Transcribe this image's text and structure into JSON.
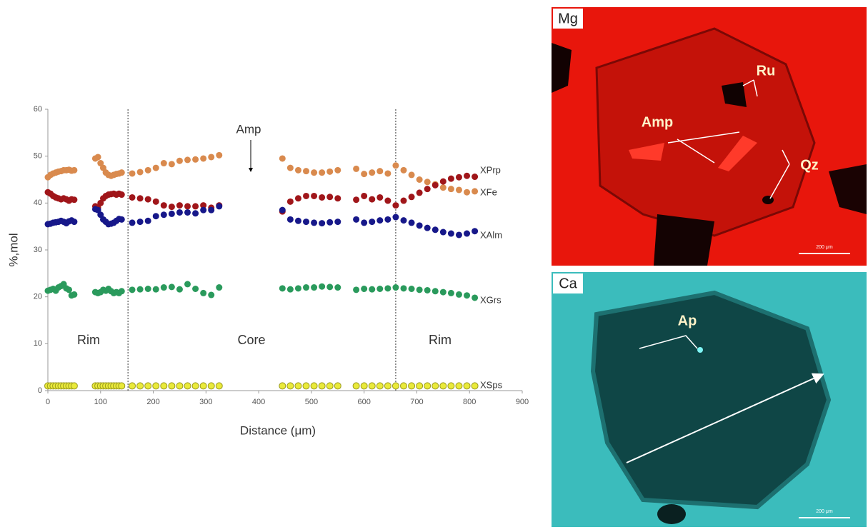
{
  "chart_data": {
    "type": "scatter",
    "x_label": "Distance (μm)",
    "y_label": "%,mol",
    "xlim": [
      0,
      900
    ],
    "xticks": [
      0,
      100,
      200,
      300,
      400,
      500,
      600,
      700,
      800,
      900
    ],
    "ylim": [
      0,
      60
    ],
    "yticks": [
      0,
      10,
      20,
      30,
      40,
      50,
      60
    ],
    "boundaries": [
      152,
      660
    ],
    "zones": [
      "Rim",
      "Core",
      "Rim"
    ],
    "annotation": "Amp",
    "x": [
      0,
      5,
      10,
      15,
      20,
      25,
      30,
      35,
      40,
      45,
      50,
      90,
      95,
      100,
      105,
      110,
      115,
      120,
      125,
      130,
      135,
      140,
      160,
      175,
      190,
      205,
      220,
      235,
      250,
      265,
      280,
      295,
      310,
      325,
      445,
      460,
      475,
      490,
      505,
      520,
      535,
      550,
      585,
      600,
      615,
      630,
      645,
      660,
      675,
      690,
      705,
      720,
      735,
      750,
      765,
      780,
      795,
      810
    ],
    "series": [
      {
        "name": "XPrp",
        "color": "#d98a4e",
        "values": [
          45.5,
          46,
          46.3,
          46.5,
          46.7,
          46.8,
          47,
          47,
          47.1,
          46.9,
          47,
          49.5,
          49.8,
          48.5,
          47.5,
          46.5,
          46,
          45.8,
          46,
          46.2,
          46.3,
          46.5,
          46.3,
          46.6,
          47,
          47.5,
          48.5,
          48.3,
          49,
          49.2,
          49.3,
          49.5,
          49.8,
          50.2,
          49.5,
          47.5,
          47,
          46.8,
          46.5,
          46.5,
          46.7,
          47,
          47.3,
          46.2,
          46.5,
          46.8,
          46.3,
          48,
          47,
          46,
          45,
          44.5,
          44,
          43.3,
          43,
          42.8,
          42.3,
          42.5
        ]
      },
      {
        "name": "XFe",
        "color": "#a0161a",
        "values": [
          42.3,
          42,
          41.5,
          41.2,
          41,
          40.8,
          41,
          40.8,
          40.5,
          40.8,
          40.7,
          39.3,
          39,
          40,
          41,
          41.5,
          41.8,
          41.9,
          42,
          41.8,
          42,
          41.8,
          41.2,
          41,
          40.8,
          40.3,
          39.5,
          39.2,
          39.5,
          39.3,
          39.3,
          39.5,
          39,
          39.5,
          38.2,
          40.3,
          41,
          41.5,
          41.5,
          41.2,
          41.3,
          41,
          40.7,
          41.5,
          40.8,
          41.2,
          40.5,
          39.5,
          40.5,
          41.3,
          42.2,
          43,
          43.8,
          44.6,
          45.2,
          45.5,
          45.8,
          45.6
        ]
      },
      {
        "name": "XAlm",
        "color": "#17188a",
        "values": [
          35.5,
          35.6,
          35.8,
          35.9,
          36,
          36.2,
          36,
          35.7,
          36.1,
          36.3,
          36,
          38.7,
          38.5,
          37.5,
          36.5,
          36,
          35.5,
          35.6,
          35.8,
          36.2,
          36.6,
          36.5,
          35.8,
          36,
          36.2,
          37.2,
          37.5,
          37.7,
          38,
          38,
          37.8,
          38.5,
          38.5,
          39.3,
          38.5,
          36.5,
          36.2,
          36,
          35.8,
          35.7,
          35.9,
          36,
          36.5,
          35.8,
          36,
          36.3,
          36.5,
          37,
          36.3,
          35.8,
          35.2,
          34.7,
          34.3,
          33.8,
          33.5,
          33.2,
          33.5,
          34
        ]
      },
      {
        "name": "XGrs",
        "color": "#2a9a5c",
        "values": [
          21.3,
          21.5,
          21.7,
          21.3,
          22,
          22.3,
          22.7,
          21.8,
          21.5,
          20.3,
          20.5,
          21,
          20.8,
          21,
          21.5,
          21.3,
          21.7,
          21.2,
          20.8,
          21,
          20.8,
          21.2,
          21.5,
          21.6,
          21.7,
          21.6,
          22,
          22.1,
          21.6,
          22.7,
          21.7,
          20.8,
          20.4,
          22,
          21.8,
          21.6,
          21.8,
          22,
          22,
          22.2,
          22.1,
          22,
          21.5,
          21.7,
          21.6,
          21.7,
          21.8,
          22,
          21.8,
          21.7,
          21.5,
          21.4,
          21.2,
          21,
          20.8,
          20.5,
          20.3,
          19.8
        ]
      },
      {
        "name": "XSps",
        "color": "#eaea3a",
        "values": [
          1,
          1,
          1,
          1,
          1,
          1,
          1,
          1,
          1,
          1,
          1,
          1,
          1,
          1,
          1,
          1,
          1,
          1,
          1,
          1,
          1,
          1,
          1,
          1,
          1,
          1,
          1,
          1,
          1,
          1,
          1,
          1,
          1,
          1,
          1,
          1,
          1,
          1,
          1,
          1,
          1,
          1,
          1,
          1,
          1,
          1,
          1,
          1,
          1,
          1,
          1,
          1,
          1,
          1,
          1,
          1,
          1,
          1
        ]
      }
    ]
  },
  "panels": [
    {
      "element": "Mg",
      "labels": [
        "Ru",
        "Amp",
        "Qz"
      ],
      "scale": "200 μm"
    },
    {
      "element": "Ca",
      "labels": [
        "Ap"
      ],
      "scale": "200 μm"
    }
  ]
}
